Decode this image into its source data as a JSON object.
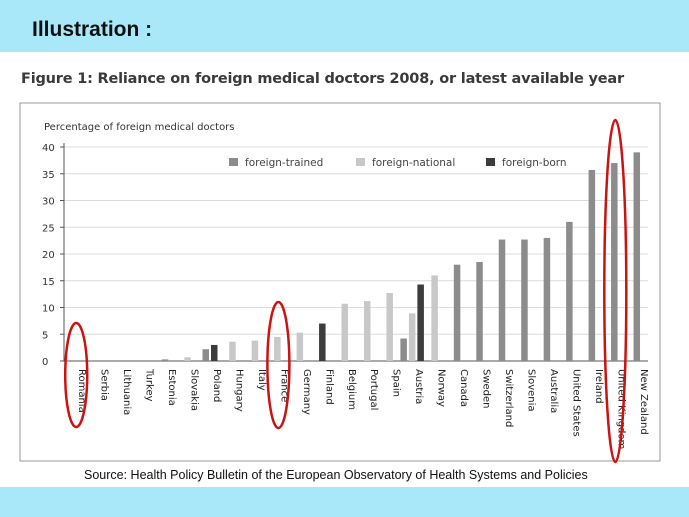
{
  "slide": {
    "title": "Illustration :",
    "source": "Source: Health Policy Bulletin of the European Observatory of Health Systems and Policies",
    "band_color": "#a8e8f8"
  },
  "chart_data": {
    "type": "bar",
    "title": "Figure 1: Reliance on foreign medical doctors 2008, or latest available year",
    "ylabel": "Percentage of foreign medical doctors",
    "xlabel": "",
    "ylim": [
      0,
      40
    ],
    "yticks": [
      0,
      5,
      10,
      15,
      20,
      25,
      30,
      35,
      40
    ],
    "grid": true,
    "legend_position": "top",
    "categories": [
      "Romania",
      "Serbia",
      "Lithuania",
      "Turkey",
      "Estonia",
      "Slovakia",
      "Poland",
      "Hungary",
      "Italy",
      "France",
      "Germany",
      "Finland",
      "Belgium",
      "Portugal",
      "Spain",
      "Austria",
      "Norway",
      "Canada",
      "Sweden",
      "Switzerland",
      "Slovenia",
      "Australia",
      "United States",
      "Ireland",
      "United Kingdom",
      "New Zealand"
    ],
    "series": [
      {
        "name": "foreign-trained",
        "color": "#8c8c8c",
        "values": [
          0,
          0,
          0,
          0,
          0.3,
          0,
          2.2,
          0,
          0,
          0,
          0,
          0,
          0,
          0,
          0,
          4.2,
          0,
          18,
          18.5,
          22.7,
          22.7,
          23,
          26,
          35.7,
          37,
          39
        ]
      },
      {
        "name": "foreign-national",
        "color": "#c8c8c8",
        "values": [
          0,
          0,
          0,
          0,
          0,
          0.7,
          0,
          3.6,
          3.8,
          4.5,
          5.3,
          0,
          10.7,
          11.2,
          12.7,
          8.9,
          16,
          0,
          0,
          0,
          0,
          0,
          0,
          0,
          0,
          0
        ]
      },
      {
        "name": "foreign-born",
        "color": "#3c3c3c",
        "values": [
          0,
          0,
          0,
          0,
          0,
          0,
          3,
          0,
          0,
          0,
          0,
          7,
          0,
          0,
          0,
          14.3,
          0,
          0,
          0,
          0,
          0,
          0,
          0,
          0,
          0,
          0
        ]
      }
    ],
    "highlighted": [
      "Romania",
      "France",
      "United Kingdom"
    ],
    "highlight_color": "#cc1111"
  }
}
